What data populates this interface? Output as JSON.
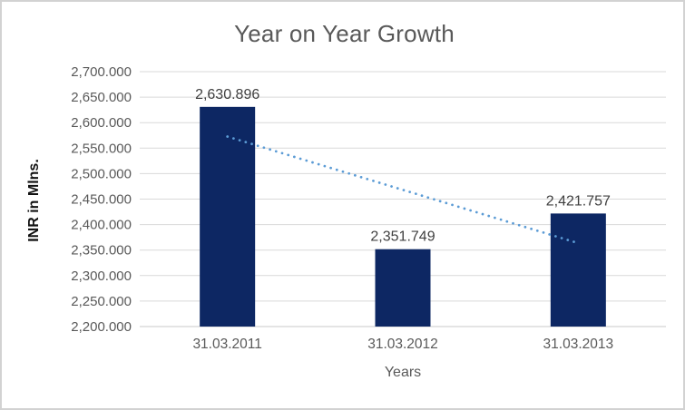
{
  "window": {
    "background": "#ffffff",
    "border_color": "#d2d2d2"
  },
  "chart_data": {
    "type": "bar",
    "title": "Year on Year Growth",
    "xlabel": "Years",
    "ylabel": "INR in Mlns.",
    "categories": [
      "31.03.2011",
      "31.03.2012",
      "31.03.2013"
    ],
    "values": [
      2630.896,
      2351.749,
      2421.757
    ],
    "data_labels": [
      "2,630.896",
      "2,351.749",
      "2,421.757"
    ],
    "ylim": [
      2200,
      2700
    ],
    "ytick_step": 50,
    "ytick_labels": [
      "2,200.000",
      "2,250.000",
      "2,300.000",
      "2,350.000",
      "2,400.000",
      "2,450.000",
      "2,500.000",
      "2,550.000",
      "2,600.000",
      "2,650.000",
      "2,700.000"
    ],
    "grid": true,
    "legend": "none",
    "trendline": {
      "type": "linear",
      "style": "dotted",
      "start_value": 2572.7,
      "end_value": 2363.6
    },
    "colors": {
      "bar": "#0d2763",
      "trendline": "#5b9bd5",
      "gridline": "#d9d9d9",
      "axis_line": "#c9c9c9",
      "title_text": "#595959",
      "tick_text": "#595959",
      "data_label_text": "#404040",
      "ylabel_text": "#111111"
    }
  }
}
